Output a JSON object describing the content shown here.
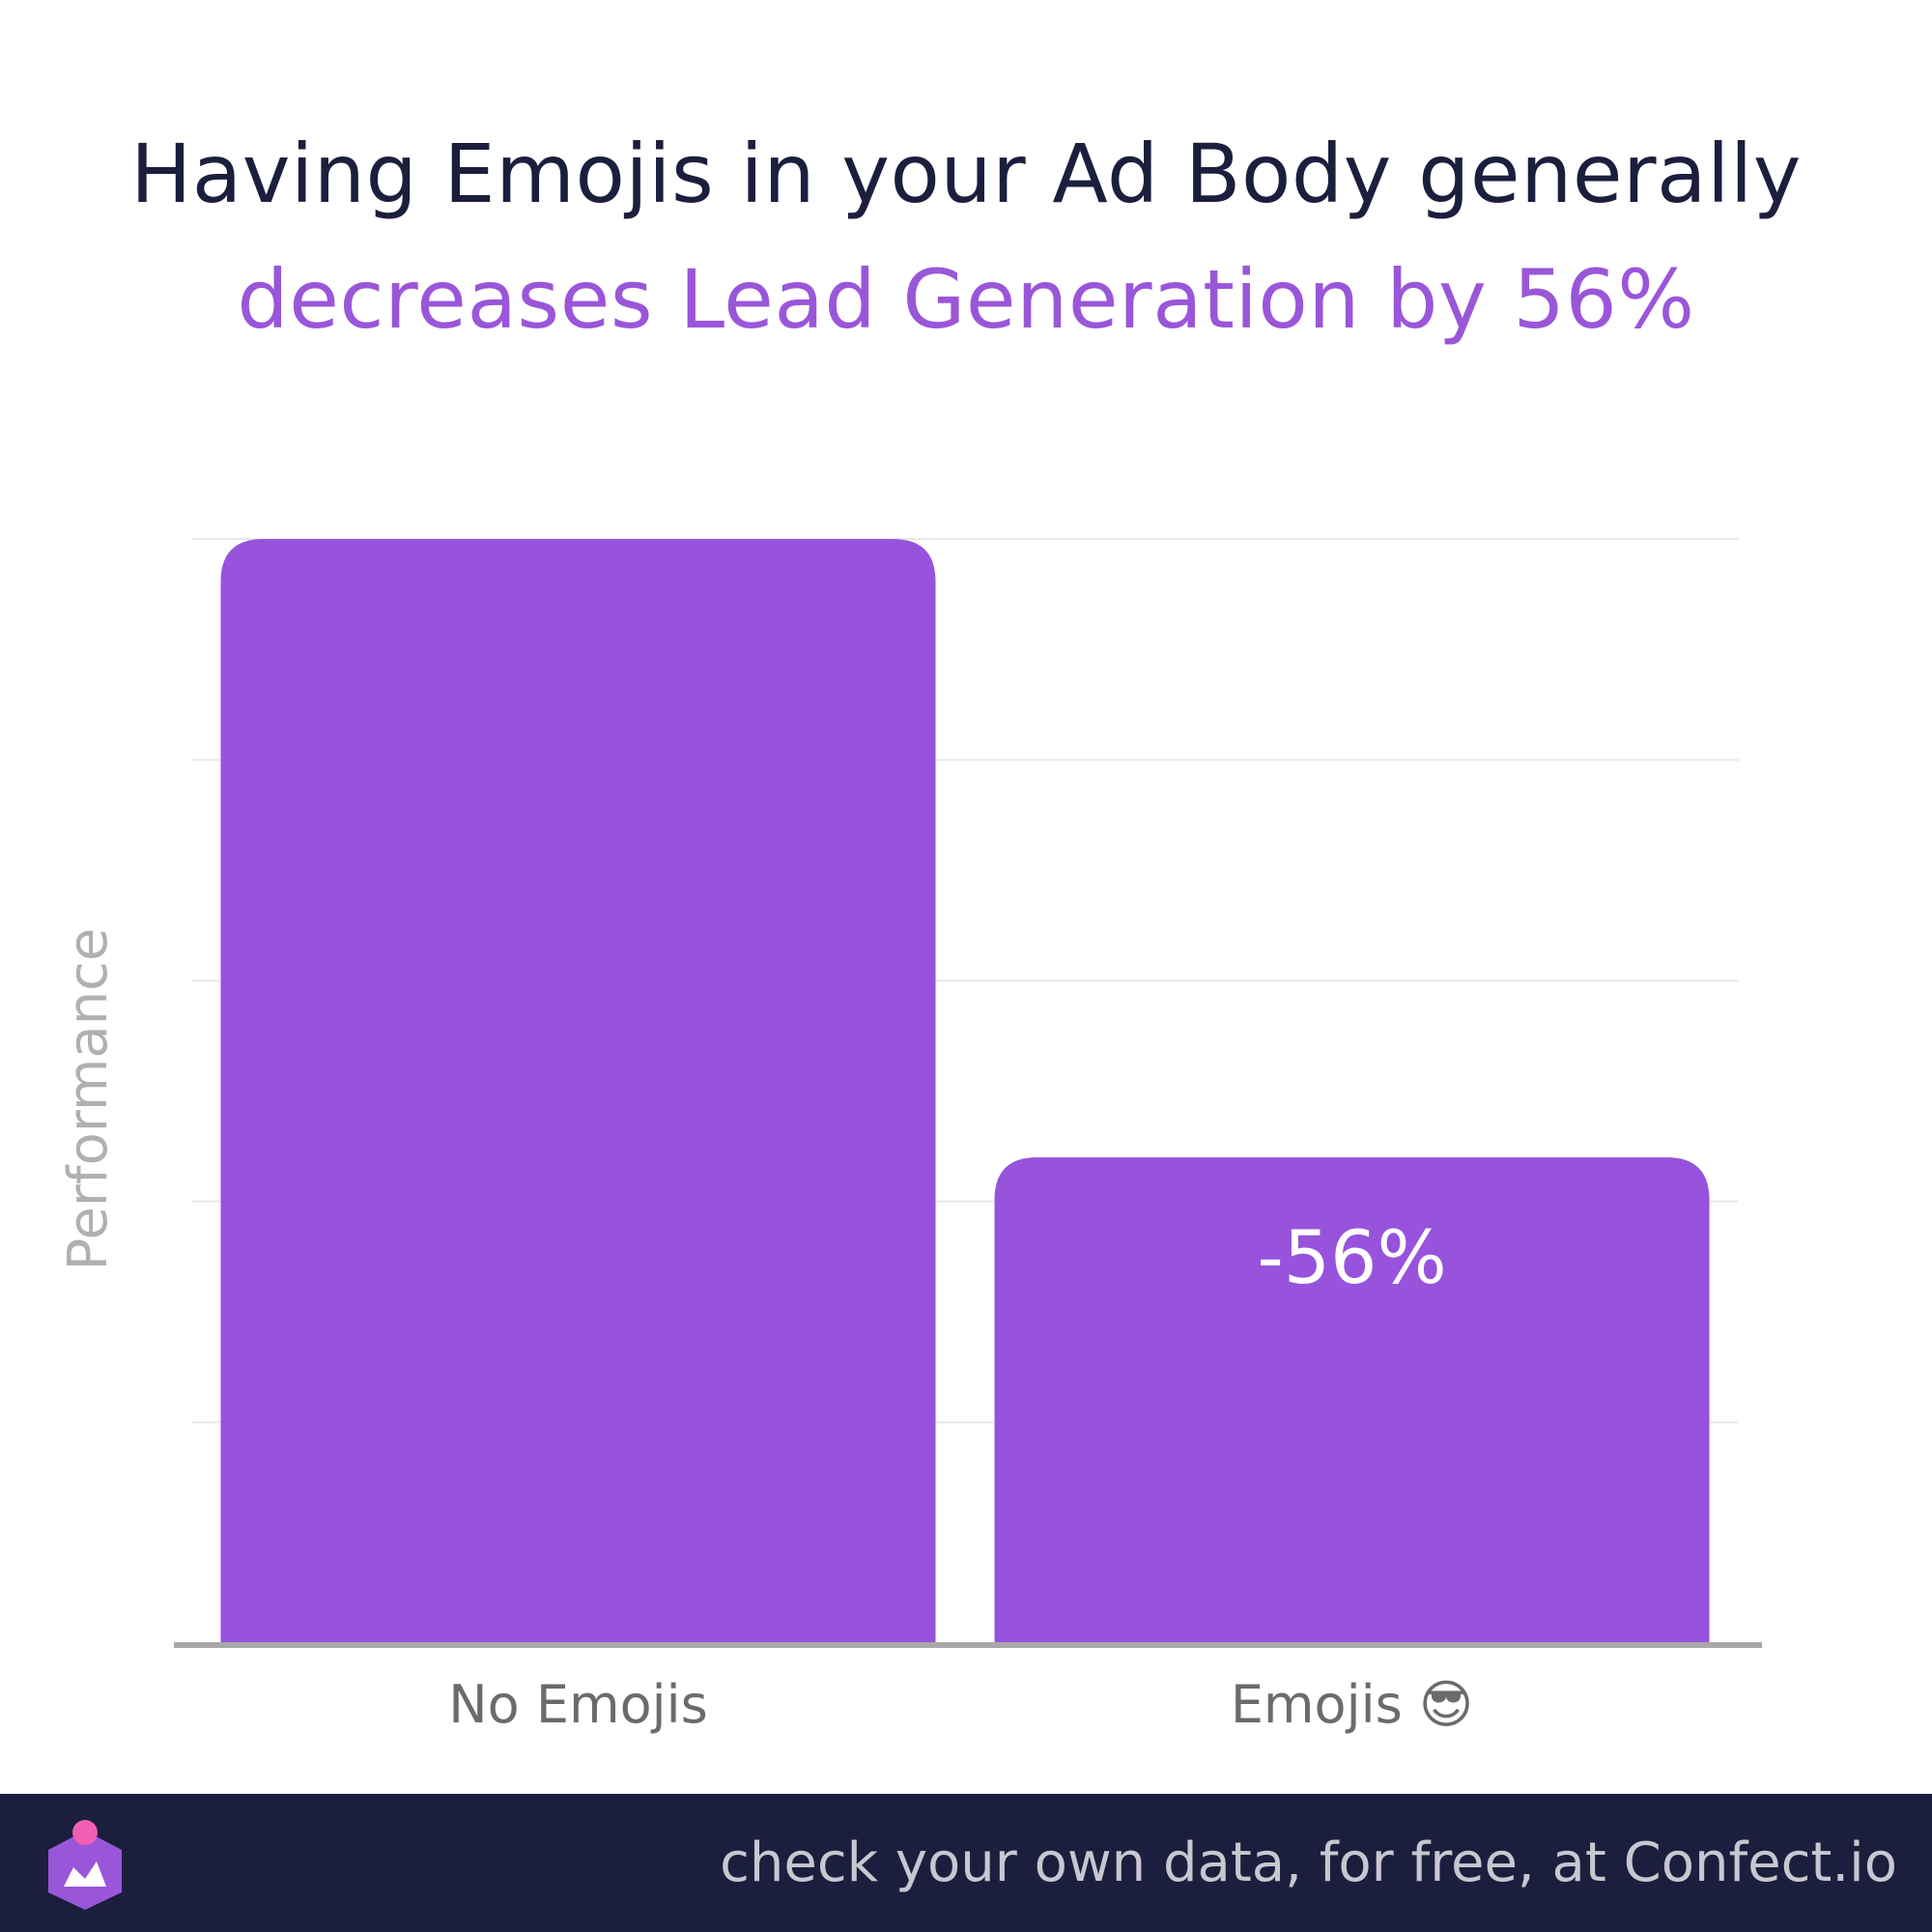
{
  "title": {
    "line1": "Having Emojis in your Ad Body generally",
    "line2": "decreases Lead Generation by 56%"
  },
  "colors": {
    "title_dark": "#1c1e3d",
    "accent": "#9a56d9",
    "bar": "#9753dc",
    "grid": "#e8e8ea",
    "axis": "#a8a8a8",
    "tick_label": "#6b6b6b",
    "ylabel": "#b0b0b0",
    "footer_bg": "#1c1e3d",
    "footer_text": "#c8c6cf",
    "logo_body": "#9a56d9",
    "logo_dot": "#f05fb3"
  },
  "chart_data": {
    "type": "bar",
    "categories": [
      "No Emojis",
      "Emojis 😎"
    ],
    "values": [
      100,
      44
    ],
    "data_labels": [
      "",
      "-56%"
    ],
    "title": "Having Emojis in your Ad Body generally decreases Lead Generation by 56%",
    "xlabel": "",
    "ylabel": "Performance",
    "ylim": [
      0,
      100
    ],
    "grid": true,
    "y_tick_labels_shown": false
  },
  "footer": {
    "text": "check your own data, for free, at Confect.io",
    "logo_icon": "confect-logo-icon"
  }
}
